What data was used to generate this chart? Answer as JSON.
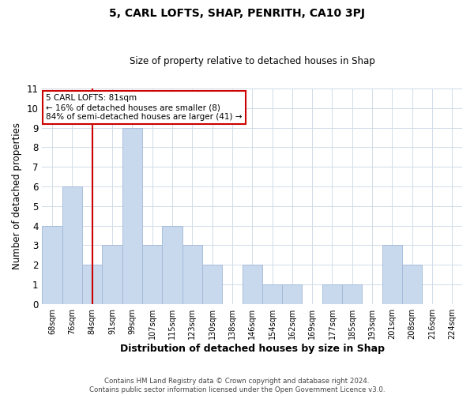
{
  "title": "5, CARL LOFTS, SHAP, PENRITH, CA10 3PJ",
  "subtitle": "Size of property relative to detached houses in Shap",
  "xlabel": "Distribution of detached houses by size in Shap",
  "ylabel": "Number of detached properties",
  "footer_line1": "Contains HM Land Registry data © Crown copyright and database right 2024.",
  "footer_line2": "Contains public sector information licensed under the Open Government Licence v3.0.",
  "bin_labels": [
    "68sqm",
    "76sqm",
    "84sqm",
    "91sqm",
    "99sqm",
    "107sqm",
    "115sqm",
    "123sqm",
    "130sqm",
    "138sqm",
    "146sqm",
    "154sqm",
    "162sqm",
    "169sqm",
    "177sqm",
    "185sqm",
    "193sqm",
    "201sqm",
    "208sqm",
    "216sqm",
    "224sqm"
  ],
  "bar_heights": [
    4,
    6,
    2,
    3,
    9,
    3,
    4,
    3,
    2,
    0,
    2,
    1,
    1,
    0,
    1,
    1,
    0,
    3,
    2,
    0,
    0
  ],
  "bar_color": "#c8d9ed",
  "bar_edgecolor": "#a0b8d8",
  "vline_x_index": 2,
  "vline_color": "#cc0000",
  "annotation_line1": "5 CARL LOFTS: 81sqm",
  "annotation_line2": "← 16% of detached houses are smaller (8)",
  "annotation_line3": "84% of semi-detached houses are larger (41) →",
  "annotation_box_edgecolor": "#cc0000",
  "annotation_box_facecolor": "#ffffff",
  "ylim": [
    0,
    11
  ],
  "yticks": [
    0,
    1,
    2,
    3,
    4,
    5,
    6,
    7,
    8,
    9,
    10,
    11
  ],
  "background_color": "#ffffff",
  "grid_color": "#d0dce8"
}
